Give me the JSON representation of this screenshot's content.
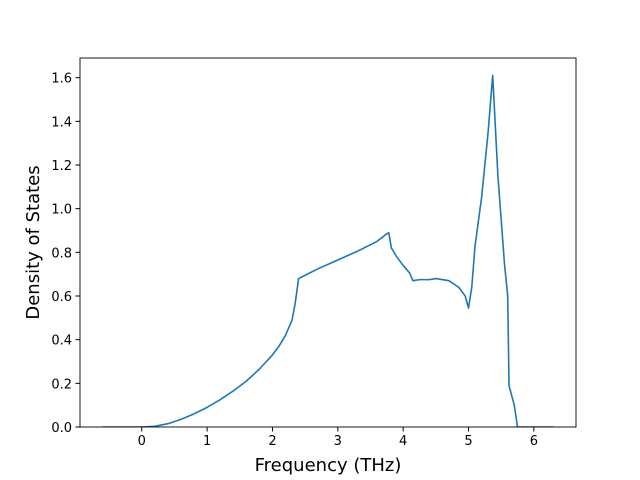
{
  "chart_data": {
    "type": "line",
    "xlabel": "Frequency (THz)",
    "ylabel": "Density of States",
    "color": "#1f77b4",
    "x": [
      -0.6,
      0,
      0.2,
      0.4,
      0.6,
      0.8,
      1.0,
      1.2,
      1.4,
      1.6,
      1.8,
      2.0,
      2.1,
      2.2,
      2.3,
      2.35,
      2.4,
      2.5,
      2.7,
      3.0,
      3.3,
      3.6,
      3.75,
      3.78,
      3.82,
      3.9,
      4.0,
      4.1,
      4.15,
      4.25,
      4.4,
      4.5,
      4.7,
      4.85,
      4.95,
      5.0,
      5.05,
      5.1,
      5.2,
      5.3,
      5.37,
      5.45,
      5.55,
      5.6,
      5.62,
      5.7,
      5.75,
      6.0,
      6.3
    ],
    "values": [
      0,
      0,
      0.003,
      0.015,
      0.035,
      0.06,
      0.09,
      0.125,
      0.165,
      0.21,
      0.265,
      0.33,
      0.37,
      0.42,
      0.49,
      0.57,
      0.68,
      0.695,
      0.725,
      0.765,
      0.805,
      0.85,
      0.885,
      0.89,
      0.82,
      0.78,
      0.74,
      0.705,
      0.67,
      0.675,
      0.675,
      0.68,
      0.67,
      0.64,
      0.6,
      0.545,
      0.64,
      0.83,
      1.05,
      1.35,
      1.61,
      1.15,
      0.75,
      0.6,
      0.19,
      0.1,
      0,
      0,
      0
    ],
    "xlim": [
      -0.945,
      6.645
    ],
    "ylim": [
      0,
      1.69
    ],
    "xticks": [
      0,
      1,
      2,
      3,
      4,
      5,
      6
    ],
    "yticks": [
      {
        "value": 0,
        "label": "0.0"
      },
      {
        "value": 0.2,
        "label": "0.2"
      },
      {
        "value": 0.4,
        "label": "0.4"
      },
      {
        "value": 0.6,
        "label": "0.6"
      },
      {
        "value": 0.8,
        "label": "0.8"
      },
      {
        "value": 1.0,
        "label": "1.0"
      },
      {
        "value": 1.2,
        "label": "1.2"
      },
      {
        "value": 1.4,
        "label": "1.4"
      },
      {
        "value": 1.6,
        "label": "1.6"
      }
    ]
  }
}
